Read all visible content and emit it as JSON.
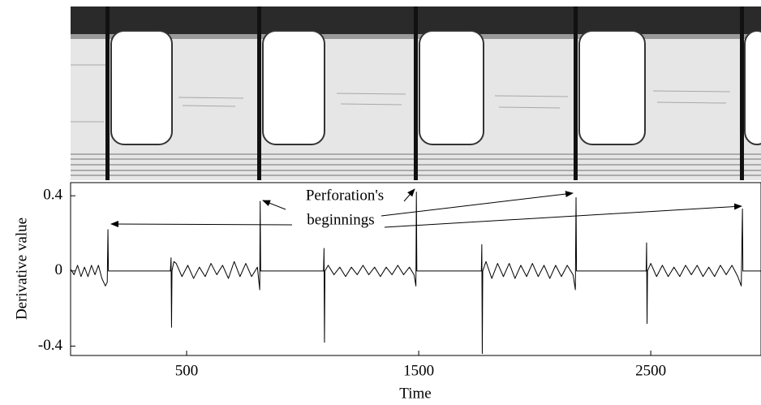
{
  "chart_data": {
    "type": "line",
    "xlabel": "Time",
    "ylabel": "Derivative value",
    "annotation": [
      "Perforation's",
      "beginnings"
    ],
    "color": "#000000",
    "xlim": [
      0,
      2975
    ],
    "ylim": [
      -0.45,
      0.47
    ],
    "xticks": [
      500,
      1500,
      2500
    ],
    "yticks": [
      -0.4,
      0,
      0.4
    ],
    "grid": false,
    "x": [
      0,
      15,
      30,
      45,
      60,
      75,
      90,
      105,
      120,
      135,
      150,
      158,
      161,
      163,
      430,
      433,
      435,
      437,
      445,
      455,
      480,
      505,
      530,
      555,
      580,
      605,
      630,
      655,
      680,
      705,
      730,
      755,
      780,
      805,
      815,
      817,
      819,
      1090,
      1092,
      1094,
      1096,
      1110,
      1135,
      1160,
      1185,
      1210,
      1235,
      1260,
      1285,
      1310,
      1335,
      1360,
      1385,
      1410,
      1435,
      1460,
      1480,
      1488,
      1490,
      1492,
      1770,
      1772,
      1774,
      1776,
      1790,
      1815,
      1840,
      1865,
      1890,
      1915,
      1940,
      1965,
      1990,
      2015,
      2040,
      2065,
      2090,
      2115,
      2140,
      2165,
      2175,
      2178,
      2180,
      2480,
      2482,
      2484,
      2486,
      2500,
      2525,
      2550,
      2575,
      2600,
      2625,
      2650,
      2675,
      2700,
      2725,
      2750,
      2775,
      2800,
      2825,
      2850,
      2875,
      2890,
      2895,
      2897,
      2975
    ],
    "values": [
      0.01,
      -0.02,
      0.03,
      -0.03,
      0.02,
      -0.03,
      0.03,
      -0.02,
      0.03,
      -0.04,
      -0.08,
      -0.06,
      0.22,
      0,
      0,
      0.07,
      -0.3,
      0,
      0.05,
      0.04,
      -0.03,
      0.03,
      -0.04,
      0.02,
      -0.03,
      0.04,
      -0.02,
      0.03,
      -0.04,
      0.05,
      -0.03,
      0.04,
      -0.03,
      0.02,
      -0.1,
      0.37,
      0,
      0,
      0.12,
      -0.38,
      0,
      0.03,
      -0.02,
      0.02,
      -0.03,
      0.02,
      -0.02,
      0.03,
      -0.02,
      0.02,
      -0.03,
      0.02,
      -0.02,
      0.03,
      -0.02,
      0.02,
      -0.02,
      -0.08,
      0.42,
      0,
      0,
      0.14,
      -0.44,
      0,
      0.05,
      -0.04,
      0.04,
      -0.03,
      0.04,
      -0.04,
      0.03,
      -0.03,
      0.04,
      -0.03,
      0.03,
      -0.04,
      0.03,
      -0.03,
      0.03,
      -0.02,
      -0.1,
      0.39,
      0,
      0,
      0.15,
      -0.28,
      0,
      0.04,
      -0.03,
      0.03,
      -0.03,
      0.02,
      -0.03,
      0.03,
      -0.02,
      0.03,
      -0.03,
      0.02,
      -0.03,
      0.03,
      -0.02,
      0.03,
      -0.03,
      -0.08,
      0.33,
      0,
      0
    ]
  }
}
